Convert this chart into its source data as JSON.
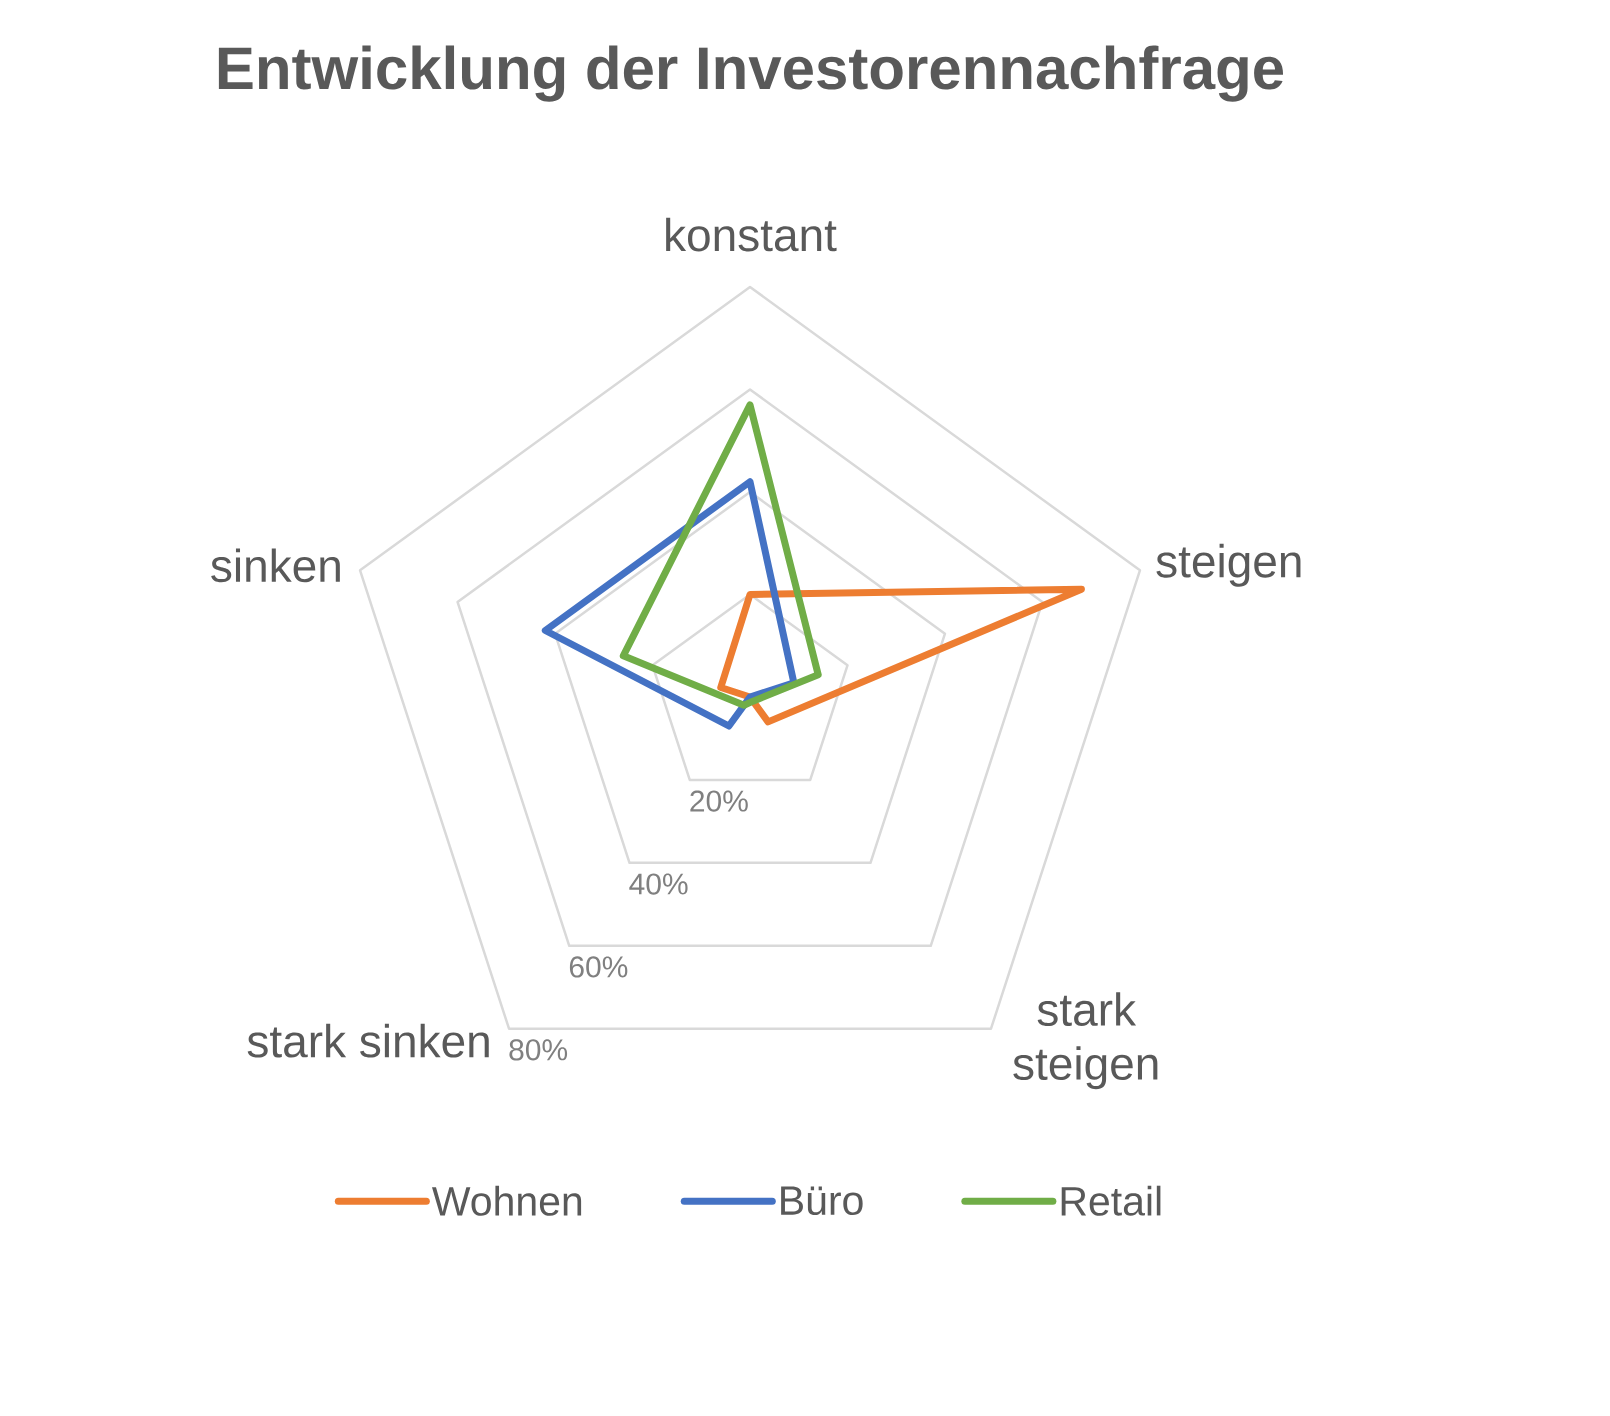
{
  "chart_data": {
    "type": "radar",
    "title": "Entwicklung der Investorennachfrage",
    "categories": [
      "konstant",
      "steigen",
      "stark steigen",
      "stark sinken",
      "sinken"
    ],
    "series": [
      {
        "name": "Wohnen",
        "color": "#ED7D31",
        "values": [
          20,
          68,
          6,
          0,
          6
        ]
      },
      {
        "name": "Büro",
        "color": "#4472C4",
        "values": [
          42,
          9,
          0,
          7,
          42
        ]
      },
      {
        "name": "Retail",
        "color": "#70AD47",
        "values": [
          57,
          14,
          1,
          2,
          26
        ]
      }
    ],
    "ylim": [
      0,
      80
    ],
    "yticks": [
      {
        "value": 20,
        "label": "20%"
      },
      {
        "value": 40,
        "label": "40%"
      },
      {
        "value": 60,
        "label": "60%"
      },
      {
        "value": 80,
        "label": "80%"
      }
    ],
    "grid": true,
    "legend": "bottom",
    "line_style": "solid"
  }
}
